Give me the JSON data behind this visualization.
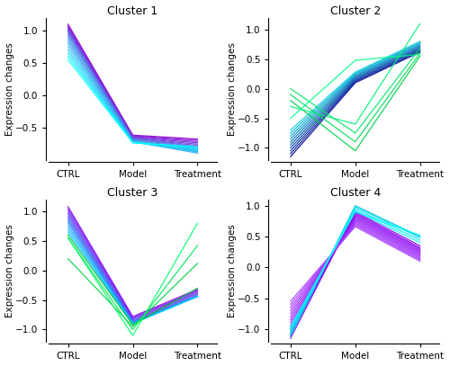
{
  "titles": [
    "Cluster 1",
    "Cluster 2",
    "Cluster 3",
    "Cluster 4"
  ],
  "xlabel": [
    "CTRL",
    "Model",
    "Treatment"
  ],
  "ylabel": "Expression changes",
  "background_color": "#ffffff",
  "cluster1": {
    "lines": [
      [
        1.1,
        -0.62,
        -0.68
      ],
      [
        1.08,
        -0.63,
        -0.7
      ],
      [
        1.06,
        -0.64,
        -0.72
      ],
      [
        1.04,
        -0.65,
        -0.74
      ],
      [
        1.02,
        -0.66,
        -0.76
      ],
      [
        1.0,
        -0.67,
        -0.78
      ],
      [
        0.98,
        -0.67,
        -0.8
      ],
      [
        0.95,
        -0.68,
        -0.82
      ],
      [
        0.92,
        -0.69,
        -0.84
      ],
      [
        0.88,
        -0.7,
        -0.86
      ],
      [
        0.84,
        -0.71,
        -0.88
      ],
      [
        0.8,
        -0.72,
        -0.9
      ],
      [
        0.75,
        -0.72,
        -0.88
      ],
      [
        0.7,
        -0.73,
        -0.86
      ],
      [
        0.65,
        -0.73,
        -0.84
      ],
      [
        0.6,
        -0.73,
        -0.82
      ],
      [
        0.55,
        -0.74,
        -0.8
      ]
    ],
    "colors": [
      "#7B00FF",
      "#6600FF",
      "#5500EE",
      "#4400DD",
      "#3300CC",
      "#2200BB",
      "#1188DD",
      "#00AAEE",
      "#00BBFF",
      "#00CCFF",
      "#00DDFF",
      "#00EEFF",
      "#00FFFF",
      "#00FFEE",
      "#00FFDD",
      "#00FFCC",
      "#00FFBB"
    ],
    "ylim": [
      -1.0,
      1.2
    ],
    "yticks": [
      -0.5,
      0.0,
      0.5,
      1.0
    ]
  },
  "cluster2": {
    "lines_blue": [
      [
        -1.15,
        0.1,
        0.62
      ],
      [
        -1.1,
        0.12,
        0.64
      ],
      [
        -1.05,
        0.14,
        0.66
      ],
      [
        -1.0,
        0.16,
        0.68
      ],
      [
        -0.95,
        0.18,
        0.7
      ],
      [
        -0.9,
        0.2,
        0.72
      ],
      [
        -0.85,
        0.22,
        0.74
      ],
      [
        -0.8,
        0.24,
        0.76
      ],
      [
        -0.75,
        0.26,
        0.78
      ],
      [
        -0.7,
        0.28,
        0.8
      ]
    ],
    "lines_green": [
      [
        -0.2,
        -1.05,
        0.55
      ],
      [
        -0.1,
        -0.9,
        0.6
      ],
      [
        0.0,
        -0.75,
        0.68
      ],
      [
        -0.3,
        -0.6,
        1.1
      ],
      [
        -0.5,
        0.48,
        0.58
      ]
    ],
    "ylim": [
      -1.2,
      1.2
    ],
    "yticks": [
      -1.0,
      -0.5,
      0.0,
      0.5,
      1.0
    ]
  },
  "cluster3": {
    "lines_core": [
      [
        1.08,
        -0.78,
        -0.32
      ],
      [
        1.04,
        -0.8,
        -0.34
      ],
      [
        1.0,
        -0.82,
        -0.36
      ],
      [
        0.96,
        -0.84,
        -0.38
      ],
      [
        0.92,
        -0.86,
        -0.4
      ],
      [
        0.88,
        -0.87,
        -0.42
      ],
      [
        0.84,
        -0.88,
        -0.44
      ],
      [
        0.8,
        -0.88,
        -0.44
      ],
      [
        0.75,
        -0.89,
        -0.44
      ],
      [
        0.7,
        -0.89,
        -0.44
      ],
      [
        0.65,
        -0.9,
        -0.44
      ]
    ],
    "lines_green": [
      [
        0.6,
        -0.92,
        -0.3
      ],
      [
        0.2,
        -0.95,
        0.12
      ],
      [
        0.55,
        -1.0,
        0.42
      ],
      [
        0.55,
        -1.1,
        0.8
      ]
    ],
    "ylim": [
      -1.2,
      1.2
    ],
    "yticks": [
      -1.0,
      -0.5,
      0.0,
      0.5,
      1.0
    ]
  },
  "cluster4": {
    "lines_core": [
      [
        -1.15,
        0.9,
        0.35
      ],
      [
        -1.1,
        0.88,
        0.32
      ],
      [
        -1.05,
        0.86,
        0.3
      ],
      [
        -1.0,
        0.84,
        0.28
      ],
      [
        -0.95,
        0.82,
        0.26
      ],
      [
        -0.9,
        0.8,
        0.24
      ],
      [
        -0.85,
        0.78,
        0.22
      ],
      [
        -0.8,
        0.76,
        0.2
      ],
      [
        -0.75,
        0.74,
        0.18
      ],
      [
        -0.7,
        0.72,
        0.16
      ],
      [
        -0.65,
        0.7,
        0.14
      ],
      [
        -0.6,
        0.68,
        0.12
      ],
      [
        -0.55,
        0.66,
        0.1
      ]
    ],
    "lines_cyan": [
      [
        -1.12,
        1.0,
        0.5
      ],
      [
        -1.08,
        0.98,
        0.48
      ],
      [
        -1.04,
        0.95,
        0.44
      ],
      [
        -1.0,
        0.92,
        0.4
      ],
      [
        -0.96,
        0.9,
        0.52
      ]
    ],
    "ylim": [
      -1.2,
      1.1
    ],
    "yticks": [
      -1.0,
      -0.5,
      0.0,
      0.5,
      1.0
    ]
  }
}
